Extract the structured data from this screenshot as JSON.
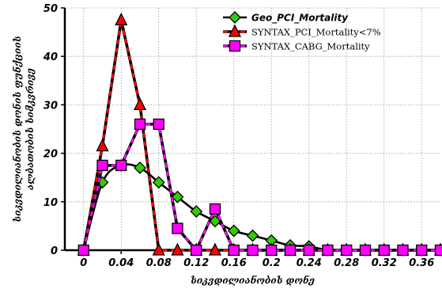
{
  "chart_data": {
    "type": "line",
    "x": [
      0,
      0.02,
      0.04,
      0.06,
      0.08,
      0.1,
      0.12,
      0.14,
      0.16,
      0.18,
      0.2,
      0.22,
      0.24,
      0.26,
      0.28,
      0.3,
      0.32,
      0.34,
      0.36,
      0.38
    ],
    "series": [
      {
        "name": "Geo_PCI_Mortality",
        "color": "#33cc00",
        "marker": "diamond",
        "line": "smooth-solid",
        "values": [
          0,
          14,
          17.5,
          17,
          14,
          11,
          8,
          6,
          4,
          3,
          2,
          1,
          0.8,
          0,
          0,
          0,
          0,
          0,
          0,
          0
        ]
      },
      {
        "name": "SYNTAX_PCI_Mortality<7%",
        "color": "#ff0000",
        "marker": "triangle",
        "line": "dashed",
        "values": [
          0,
          21.5,
          47.5,
          30,
          0,
          0,
          0,
          0,
          0,
          0,
          0,
          0,
          0,
          0,
          0,
          0,
          0,
          0,
          0,
          0
        ]
      },
      {
        "name": "SYNTAX_CABG_Mortality",
        "color": "#ff00ff",
        "marker": "square",
        "line": "dashed",
        "values": [
          0,
          17.5,
          17.5,
          26,
          26,
          4.5,
          0,
          8.5,
          0,
          0,
          0,
          0,
          0,
          0,
          0,
          0,
          0,
          0,
          0,
          0
        ]
      }
    ],
    "xlabel": "სიკვდილიანობის დონე",
    "ylabel_lines": [
      "სიკვდილიანობის დონის ფუნქციის",
      "ალბათობის სიმკვრივე"
    ],
    "xticks": [
      0,
      0.04,
      0.08,
      0.12,
      0.16,
      0.2,
      0.24,
      0.28,
      0.32,
      0.36
    ],
    "xtick_labels": [
      "0",
      "0.04",
      "0.08",
      "0.12",
      "0.16",
      "0.2",
      "0.24",
      "0.28",
      "0.32",
      "0.36"
    ],
    "yticks": [
      0,
      10,
      20,
      30,
      40,
      50
    ],
    "ytick_labels": [
      "0",
      "10",
      "20",
      "30",
      "40",
      "50"
    ],
    "xlim": [
      -0.02,
      0.38
    ],
    "ylim": [
      0,
      50
    ],
    "grid": true,
    "legend_position": "top-right"
  }
}
